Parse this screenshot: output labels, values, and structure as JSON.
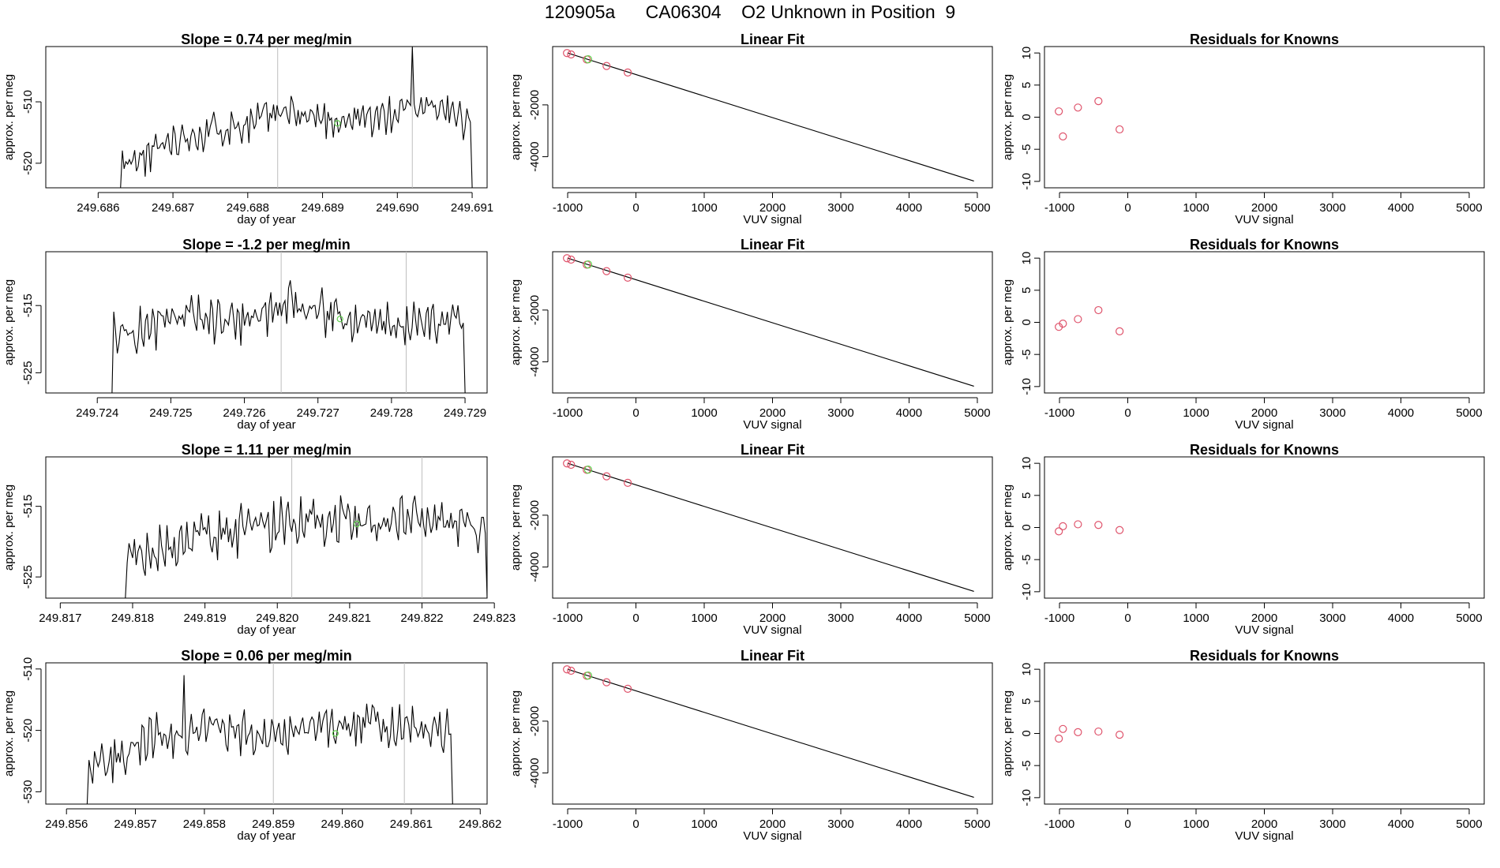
{
  "page": {
    "title": "120905a      CA06304    O2 Unknown in Position  9"
  },
  "chart_data": [
    {
      "type": "line",
      "panel": "timeseries",
      "row": 1,
      "title": "Slope =  0.74  per meg/min",
      "xlabel": "day of year",
      "ylabel": "approx. per meg",
      "xlim": [
        249.6853,
        249.6912
      ],
      "ylim": [
        -524,
        -501
      ],
      "xticks": [
        249.686,
        249.687,
        249.688,
        249.689,
        249.69,
        249.691
      ],
      "xtick_labels": [
        "249.686",
        "249.687",
        "249.688",
        "249.689",
        "249.690",
        "249.691"
      ],
      "yticks": [
        -510,
        -520
      ],
      "ytick_labels": [
        "-510",
        "-520"
      ],
      "vlines": [
        249.6884,
        249.6902
      ],
      "marker": {
        "x": 249.6892,
        "y": -513.5
      },
      "x_start": 249.6863,
      "x_end": 249.691,
      "y_start": -524,
      "y_end": -524,
      "noise": 2.3,
      "seed": 11,
      "series_points": [
        [
          249.6865,
          -520
        ],
        [
          249.687,
          -516
        ],
        [
          249.6877,
          -514
        ],
        [
          249.6885,
          -512
        ],
        [
          249.6893,
          -513
        ],
        [
          249.69,
          -512
        ],
        [
          249.6905,
          -510
        ],
        [
          249.6908,
          -513
        ]
      ],
      "spikes": [
        [
          249.6902,
          -501
        ]
      ]
    },
    {
      "type": "line",
      "panel": "timeseries",
      "row": 2,
      "title": "Slope =  -1.2  per meg/min",
      "xlabel": "day of year",
      "ylabel": "approx. per meg",
      "xlim": [
        249.7233,
        249.7293
      ],
      "ylim": [
        -528,
        -507
      ],
      "xticks": [
        249.724,
        249.725,
        249.726,
        249.727,
        249.728,
        249.729
      ],
      "xtick_labels": [
        "249.724",
        "249.725",
        "249.726",
        "249.727",
        "249.728",
        "249.729"
      ],
      "yticks": [
        -515,
        -525
      ],
      "ytick_labels": [
        "-515",
        "-525"
      ],
      "vlines": [
        249.7265,
        249.7282
      ],
      "marker": {
        "x": 249.7273,
        "y": -517
      },
      "x_start": 249.7242,
      "x_end": 249.729,
      "y_start": -528,
      "y_end": -528,
      "noise": 2.5,
      "seed": 23,
      "series_points": [
        [
          249.7244,
          -519
        ],
        [
          249.7252,
          -517
        ],
        [
          249.726,
          -517
        ],
        [
          249.7266,
          -515
        ],
        [
          249.7274,
          -517
        ],
        [
          249.7282,
          -518
        ],
        [
          249.7288,
          -517
        ]
      ],
      "spikes": []
    },
    {
      "type": "line",
      "panel": "timeseries",
      "row": 3,
      "title": "Slope =  1.11  per meg/min",
      "xlabel": "day of year",
      "ylabel": "approx. per meg",
      "xlim": [
        249.8168,
        249.8229
      ],
      "ylim": [
        -528,
        -508
      ],
      "xticks": [
        249.817,
        249.818,
        249.819,
        249.82,
        249.821,
        249.822,
        249.823
      ],
      "xtick_labels": [
        "249.817",
        "249.818",
        "249.819",
        "249.820",
        "249.821",
        "249.822",
        "249.823"
      ],
      "yticks": [
        -515,
        -525
      ],
      "ytick_labels": [
        "-515",
        "-525"
      ],
      "vlines": [
        249.8202,
        249.822
      ],
      "marker": {
        "x": 249.8211,
        "y": -517.5
      },
      "x_start": 249.8179,
      "x_end": 249.8229,
      "y_start": -528,
      "y_end": -528,
      "noise": 2.6,
      "seed": 37,
      "series_points": [
        [
          249.8182,
          -522
        ],
        [
          249.819,
          -519
        ],
        [
          249.8198,
          -518
        ],
        [
          249.8206,
          -517
        ],
        [
          249.8214,
          -517
        ],
        [
          249.8221,
          -516
        ],
        [
          249.8227,
          -518
        ]
      ],
      "spikes": []
    },
    {
      "type": "line",
      "panel": "timeseries",
      "row": 4,
      "title": "Slope =  0.06  per meg/min",
      "xlabel": "day of year",
      "ylabel": "approx. per meg",
      "xlim": [
        249.8557,
        249.8621
      ],
      "ylim": [
        -532,
        -509
      ],
      "xticks": [
        249.856,
        249.857,
        249.858,
        249.859,
        249.86,
        249.861,
        249.862
      ],
      "xtick_labels": [
        "249.856",
        "249.857",
        "249.858",
        "249.859",
        "249.860",
        "249.861",
        "249.862"
      ],
      "yticks": [
        -510,
        -520,
        -530
      ],
      "ytick_labels": [
        "-510",
        "-520",
        "-530"
      ],
      "vlines": [
        249.859,
        249.8609
      ],
      "marker": {
        "x": 249.8599,
        "y": -520.5
      },
      "x_start": 249.8563,
      "x_end": 249.8616,
      "y_start": -532,
      "y_end": -532,
      "noise": 2.6,
      "seed": 53,
      "series_points": [
        [
          249.8566,
          -525
        ],
        [
          249.8572,
          -521
        ],
        [
          249.858,
          -520
        ],
        [
          249.8588,
          -521
        ],
        [
          249.8596,
          -519
        ],
        [
          249.8604,
          -519
        ],
        [
          249.8612,
          -520
        ]
      ],
      "spikes": [
        [
          249.8577,
          -511
        ]
      ]
    },
    {
      "type": "scatter",
      "panel": "fit",
      "row": 1,
      "title": "Linear Fit",
      "xlabel": "VUV signal",
      "ylabel": "approx. per meg",
      "xlim": [
        -1220,
        5220
      ],
      "ylim": [
        -5200,
        250
      ],
      "xticks": [
        -1000,
        0,
        1000,
        2000,
        3000,
        4000,
        5000
      ],
      "xtick_labels": [
        "-1000",
        "0",
        "1000",
        "2000",
        "3000",
        "4000",
        "5000"
      ],
      "yticks": [
        -2000,
        -4000
      ],
      "ytick_labels": [
        "-2000",
        "-4000"
      ],
      "fit_line": {
        "x": [
          -1000,
          4950
        ],
        "y": [
          0,
          -4940
        ]
      },
      "knowns": [
        {
          "x": -1010,
          "y": -2
        },
        {
          "x": -950,
          "y": -55
        },
        {
          "x": -720,
          "y": -250
        },
        {
          "x": -430,
          "y": -500
        },
        {
          "x": -120,
          "y": -750
        }
      ],
      "unknown": [
        {
          "x": -700,
          "y": -240
        }
      ]
    },
    {
      "type": "scatter",
      "panel": "fit",
      "row": 2,
      "title": "Linear Fit",
      "xlabel": "VUV signal",
      "ylabel": "approx. per meg",
      "xlim": [
        -1220,
        5220
      ],
      "ylim": [
        -5200,
        250
      ],
      "xticks": [
        -1000,
        0,
        1000,
        2000,
        3000,
        4000,
        5000
      ],
      "xtick_labels": [
        "-1000",
        "0",
        "1000",
        "2000",
        "3000",
        "4000",
        "5000"
      ],
      "yticks": [
        -2000,
        -4000
      ],
      "ytick_labels": [
        "-2000",
        "-4000"
      ],
      "fit_line": {
        "x": [
          -1000,
          4950
        ],
        "y": [
          0,
          -4940
        ]
      },
      "knowns": [
        {
          "x": -1010,
          "y": -2
        },
        {
          "x": -950,
          "y": -55
        },
        {
          "x": -720,
          "y": -250
        },
        {
          "x": -430,
          "y": -500
        },
        {
          "x": -120,
          "y": -750
        }
      ],
      "unknown": [
        {
          "x": -700,
          "y": -240
        }
      ]
    },
    {
      "type": "scatter",
      "panel": "fit",
      "row": 3,
      "title": "Linear Fit",
      "xlabel": "VUV signal",
      "ylabel": "approx. per meg",
      "xlim": [
        -1220,
        5220
      ],
      "ylim": [
        -5200,
        250
      ],
      "xticks": [
        -1000,
        0,
        1000,
        2000,
        3000,
        4000,
        5000
      ],
      "xtick_labels": [
        "-1000",
        "0",
        "1000",
        "2000",
        "3000",
        "4000",
        "5000"
      ],
      "yticks": [
        -2000,
        -4000
      ],
      "ytick_labels": [
        "-2000",
        "-4000"
      ],
      "fit_line": {
        "x": [
          -1000,
          4950
        ],
        "y": [
          0,
          -4940
        ]
      },
      "knowns": [
        {
          "x": -1010,
          "y": -2
        },
        {
          "x": -950,
          "y": -55
        },
        {
          "x": -720,
          "y": -250
        },
        {
          "x": -430,
          "y": -500
        },
        {
          "x": -120,
          "y": -750
        }
      ],
      "unknown": [
        {
          "x": -700,
          "y": -240
        }
      ]
    },
    {
      "type": "scatter",
      "panel": "fit",
      "row": 4,
      "title": "Linear Fit",
      "xlabel": "VUV signal",
      "ylabel": "approx. per meg",
      "xlim": [
        -1220,
        5220
      ],
      "ylim": [
        -5200,
        250
      ],
      "xticks": [
        -1000,
        0,
        1000,
        2000,
        3000,
        4000,
        5000
      ],
      "xtick_labels": [
        "-1000",
        "0",
        "1000",
        "2000",
        "3000",
        "4000",
        "5000"
      ],
      "yticks": [
        -2000,
        -4000
      ],
      "ytick_labels": [
        "-2000",
        "-4000"
      ],
      "fit_line": {
        "x": [
          -1000,
          4950
        ],
        "y": [
          0,
          -4940
        ]
      },
      "knowns": [
        {
          "x": -1010,
          "y": -2
        },
        {
          "x": -950,
          "y": -55
        },
        {
          "x": -720,
          "y": -250
        },
        {
          "x": -430,
          "y": -500
        },
        {
          "x": -120,
          "y": -750
        }
      ],
      "unknown": [
        {
          "x": -700,
          "y": -240
        }
      ]
    },
    {
      "type": "scatter",
      "panel": "residuals",
      "row": 1,
      "title": "Residuals for Knowns",
      "xlabel": "VUV signal",
      "ylabel": "approx. per meg",
      "xlim": [
        -1220,
        5220
      ],
      "ylim": [
        -11,
        11
      ],
      "xticks": [
        -1000,
        0,
        1000,
        2000,
        3000,
        4000,
        5000
      ],
      "xtick_labels": [
        "-1000",
        "0",
        "1000",
        "2000",
        "3000",
        "4000",
        "5000"
      ],
      "yticks": [
        10,
        5,
        0,
        -5,
        -10
      ],
      "ytick_labels": [
        "10",
        "5",
        "0",
        "-5",
        "-10"
      ],
      "points": [
        {
          "x": -1010,
          "y": 0.9
        },
        {
          "x": -950,
          "y": -3.0
        },
        {
          "x": -730,
          "y": 1.5
        },
        {
          "x": -430,
          "y": 2.5
        },
        {
          "x": -120,
          "y": -1.9
        }
      ]
    },
    {
      "type": "scatter",
      "panel": "residuals",
      "row": 2,
      "title": "Residuals for Knowns",
      "xlabel": "VUV signal",
      "ylabel": "approx. per meg",
      "xlim": [
        -1220,
        5220
      ],
      "ylim": [
        -11,
        11
      ],
      "xticks": [
        -1000,
        0,
        1000,
        2000,
        3000,
        4000,
        5000
      ],
      "xtick_labels": [
        "-1000",
        "0",
        "1000",
        "2000",
        "3000",
        "4000",
        "5000"
      ],
      "yticks": [
        10,
        5,
        0,
        -5,
        -10
      ],
      "ytick_labels": [
        "10",
        "5",
        "0",
        "-5",
        "-10"
      ],
      "points": [
        {
          "x": -1010,
          "y": -0.7
        },
        {
          "x": -950,
          "y": -0.2
        },
        {
          "x": -730,
          "y": 0.5
        },
        {
          "x": -430,
          "y": 1.9
        },
        {
          "x": -120,
          "y": -1.4
        }
      ]
    },
    {
      "type": "scatter",
      "panel": "residuals",
      "row": 3,
      "title": "Residuals for Knowns",
      "xlabel": "VUV signal",
      "ylabel": "approx. per meg",
      "xlim": [
        -1220,
        5220
      ],
      "ylim": [
        -11,
        11
      ],
      "xticks": [
        -1000,
        0,
        1000,
        2000,
        3000,
        4000,
        5000
      ],
      "xtick_labels": [
        "-1000",
        "0",
        "1000",
        "2000",
        "3000",
        "4000",
        "5000"
      ],
      "yticks": [
        10,
        5,
        0,
        -5,
        -10
      ],
      "ytick_labels": [
        "10",
        "5",
        "0",
        "-5",
        "-10"
      ],
      "points": [
        {
          "x": -1010,
          "y": -0.6
        },
        {
          "x": -950,
          "y": 0.2
        },
        {
          "x": -730,
          "y": 0.5
        },
        {
          "x": -430,
          "y": 0.4
        },
        {
          "x": -120,
          "y": -0.4
        }
      ]
    },
    {
      "type": "scatter",
      "panel": "residuals",
      "row": 4,
      "title": "Residuals for Knowns",
      "xlabel": "VUV signal",
      "ylabel": "approx. per meg",
      "xlim": [
        -1220,
        5220
      ],
      "ylim": [
        -11,
        11
      ],
      "xticks": [
        -1000,
        0,
        1000,
        2000,
        3000,
        4000,
        5000
      ],
      "xtick_labels": [
        "-1000",
        "0",
        "1000",
        "2000",
        "3000",
        "4000",
        "5000"
      ],
      "yticks": [
        10,
        5,
        0,
        -5,
        -10
      ],
      "ytick_labels": [
        "10",
        "5",
        "0",
        "-5",
        "-10"
      ],
      "points": [
        {
          "x": -1010,
          "y": -0.8
        },
        {
          "x": -950,
          "y": 0.7
        },
        {
          "x": -730,
          "y": 0.2
        },
        {
          "x": -430,
          "y": 0.3
        },
        {
          "x": -120,
          "y": -0.2
        }
      ]
    }
  ],
  "colors": {
    "line": "#000000",
    "axis": "#000000",
    "vline": "#bebebe",
    "known_point": "#df536b",
    "unknown_point": "#61d04f"
  }
}
